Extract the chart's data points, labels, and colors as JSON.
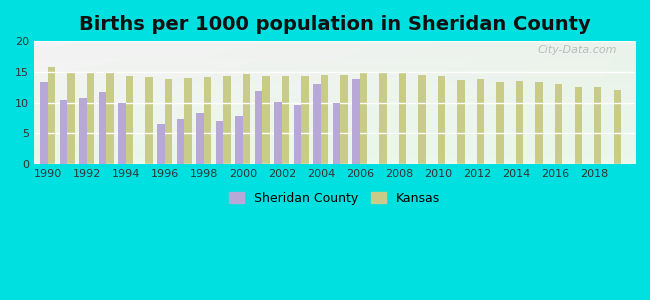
{
  "title": "Births per 1000 population in Sheridan County",
  "title_fontsize": 14,
  "title_fontweight": "bold",
  "background_color": "#00e0e0",
  "years": [
    1990,
    1991,
    1992,
    1993,
    1994,
    1995,
    1996,
    1997,
    1998,
    1999,
    2000,
    2001,
    2002,
    2003,
    2004,
    2005,
    2006,
    2007,
    2008,
    2009,
    2010,
    2011,
    2012,
    2013,
    2014,
    2015,
    2016,
    2017,
    2018,
    2019
  ],
  "sheridan": [
    13.3,
    10.4,
    10.8,
    11.8,
    9.9,
    null,
    6.6,
    7.4,
    8.4,
    7.1,
    7.9,
    11.9,
    10.1,
    9.7,
    13.0,
    10.0,
    13.9,
    null,
    null,
    null,
    null,
    null,
    null,
    null,
    null,
    null,
    null,
    null,
    null,
    null
  ],
  "kansas": [
    15.8,
    15.0,
    15.0,
    14.8,
    14.4,
    14.1,
    13.9,
    14.0,
    14.1,
    14.3,
    14.7,
    14.3,
    14.4,
    14.4,
    14.5,
    14.5,
    15.0,
    15.0,
    14.8,
    14.5,
    14.3,
    13.7,
    13.8,
    13.4,
    13.5,
    13.4,
    13.0,
    12.5,
    12.5,
    12.1
  ],
  "sheridan_color": "#b8a8d8",
  "kansas_color": "#c8cc88",
  "ylim": [
    0,
    20
  ],
  "yticks": [
    0,
    5,
    10,
    15,
    20
  ],
  "xticks": [
    1990,
    1992,
    1994,
    1996,
    1998,
    2000,
    2002,
    2004,
    2006,
    2008,
    2010,
    2012,
    2014,
    2016,
    2018
  ],
  "legend_sheridan": "Sheridan County",
  "legend_kansas": "Kansas",
  "bar_width": 0.38,
  "watermark": "City-Data.com"
}
